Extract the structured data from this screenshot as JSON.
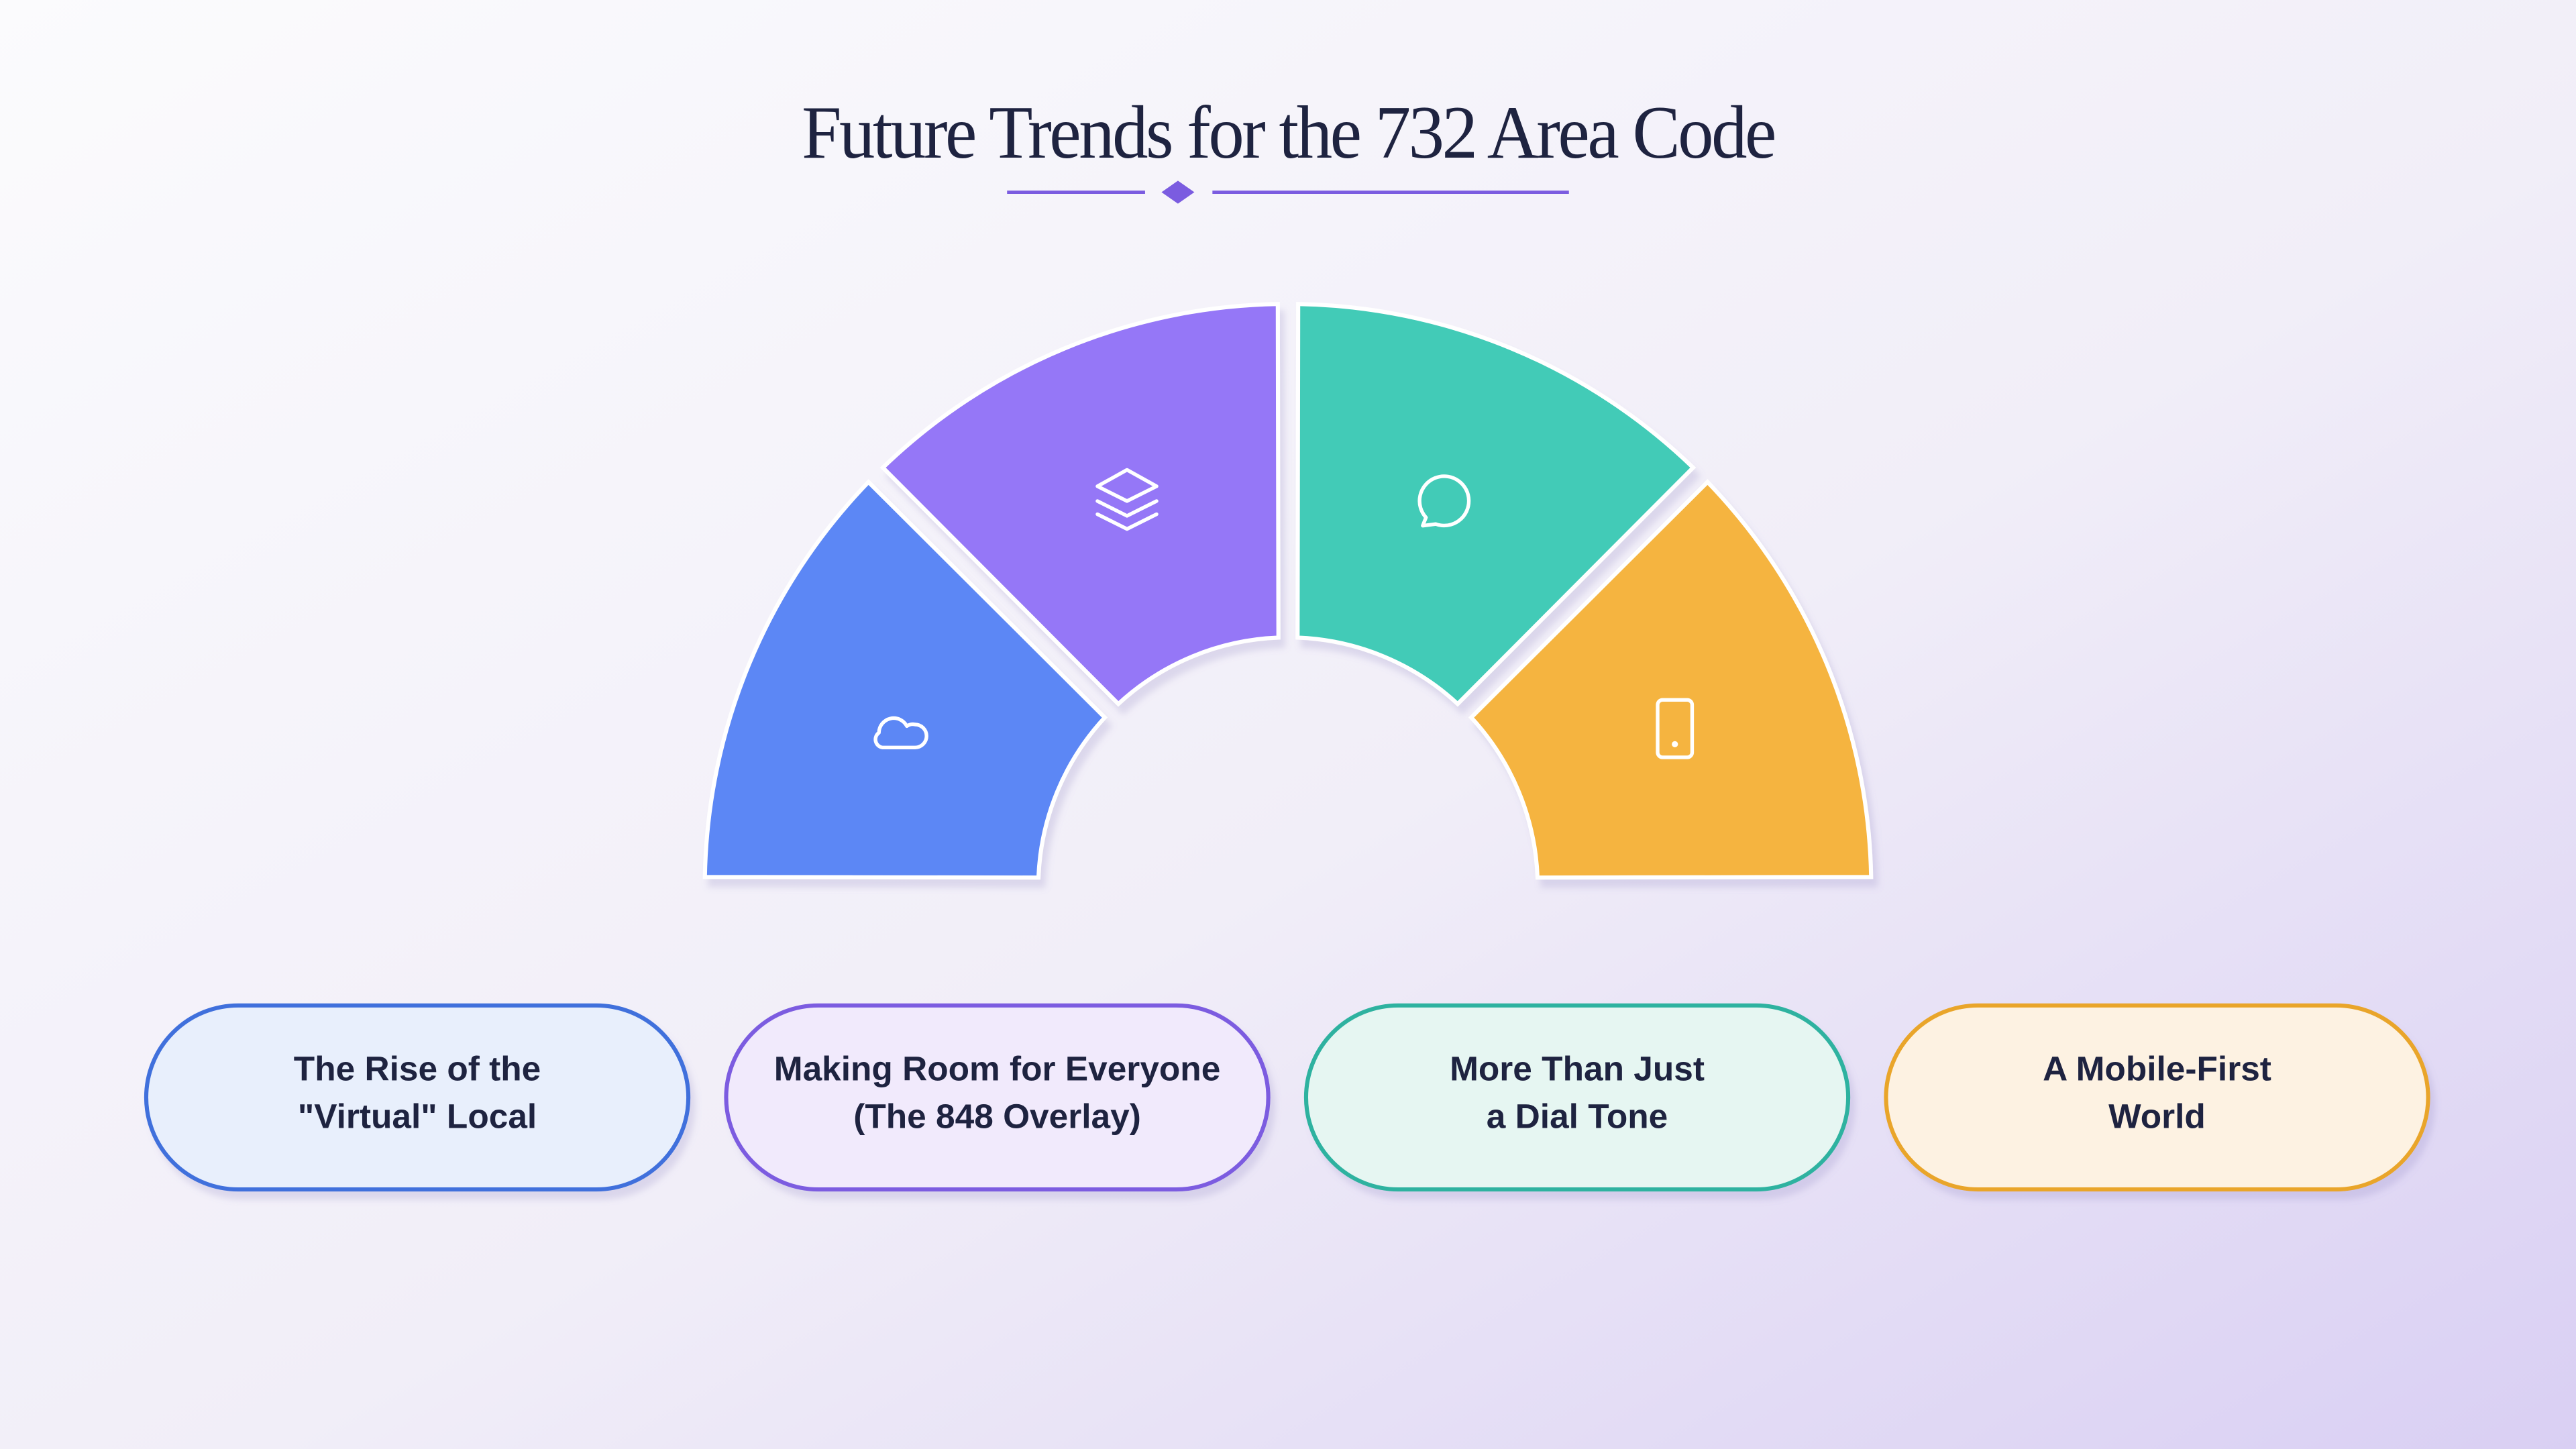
{
  "title": "Future Trends for the 732 Area Code",
  "segments": [
    {
      "label_lines": [
        "The Rise of the",
        "\"Virtual\" Local"
      ],
      "color": "#5b87f5",
      "card_fill": "#e8effc",
      "card_stroke": "#3f6fdc"
    },
    {
      "label_lines": [
        "Making Room for Everyone",
        "(The 848 Overlay)"
      ],
      "color": "#9577f7",
      "card_fill": "#f1eafc",
      "card_stroke": "#7b5ce0"
    },
    {
      "label_lines": [
        "More Than Just",
        "a Dial Tone"
      ],
      "color": "#43cbb7",
      "card_fill": "#e6f6f2",
      "card_stroke": "#2fb2a0"
    },
    {
      "label_lines": [
        "A Mobile-First",
        "World"
      ],
      "color": "#f5b43f",
      "card_fill": "#fdf2e2",
      "card_stroke": "#e9a52c"
    }
  ]
}
